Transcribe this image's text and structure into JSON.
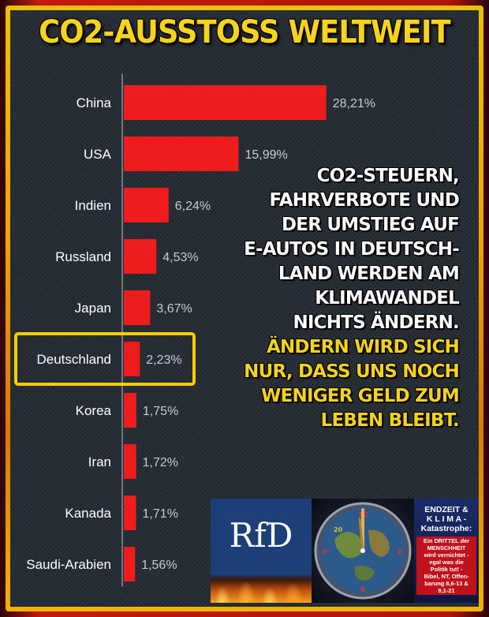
{
  "title": "CO2-AUSSTOSS WELTWEIT",
  "chart_data": {
    "type": "bar",
    "orientation": "horizontal",
    "categories": [
      "China",
      "USA",
      "Indien",
      "Russland",
      "Japan",
      "Deutschland",
      "Korea",
      "Iran",
      "Kanada",
      "Saudi-Arabien"
    ],
    "values": [
      28.21,
      15.99,
      6.24,
      4.53,
      3.67,
      2.23,
      1.75,
      1.72,
      1.71,
      1.56
    ],
    "value_labels": [
      "28,21%",
      "15,99%",
      "6,24%",
      "4,53%",
      "3,67%",
      "2,23%",
      "1,75%",
      "1,72%",
      "1,71%",
      "1,56%"
    ],
    "highlight": "Deutschland",
    "bar_color": "#ee1c1c",
    "highlight_color": "#f5cd00",
    "grid": false
  },
  "message": {
    "white_lines": [
      "CO2-STEUERN,",
      "FAHRVERBOTE UND",
      "DER UMSTIEG AUF",
      "E-AUTOS IN DEUTSCH-",
      "LAND WERDEN AM",
      "KLIMAWANDEL",
      "NICHTS ÄNDERN."
    ],
    "yellow_lines": [
      "ÄNDERN WIRD SICH",
      "NUR, DASS UNS NOCH",
      "WENIGER GELD ZUM",
      "LEBEN BLEIBT."
    ]
  },
  "badges": {
    "rfd": {
      "logo": "RfD"
    },
    "clock": {
      "numerals": [
        "12",
        "3",
        "6",
        "9",
        "20"
      ]
    },
    "endzeit": {
      "heading_lines": [
        "ENDZEIT &",
        "K L I M A -",
        "Katastrophe:"
      ],
      "body_lines": [
        "Ein DRITTEL der",
        "MENSCHHEIT",
        "wird vernichtet -",
        "egal was die",
        "Politik tut! -",
        "Bibel, NT, Offen-",
        "barung 8,6-13 &",
        "9,1-21"
      ]
    }
  },
  "colors": {
    "accent_yellow": "#f7d31c",
    "panel_bg": "#272d34",
    "frame_red": "#c41a10"
  }
}
